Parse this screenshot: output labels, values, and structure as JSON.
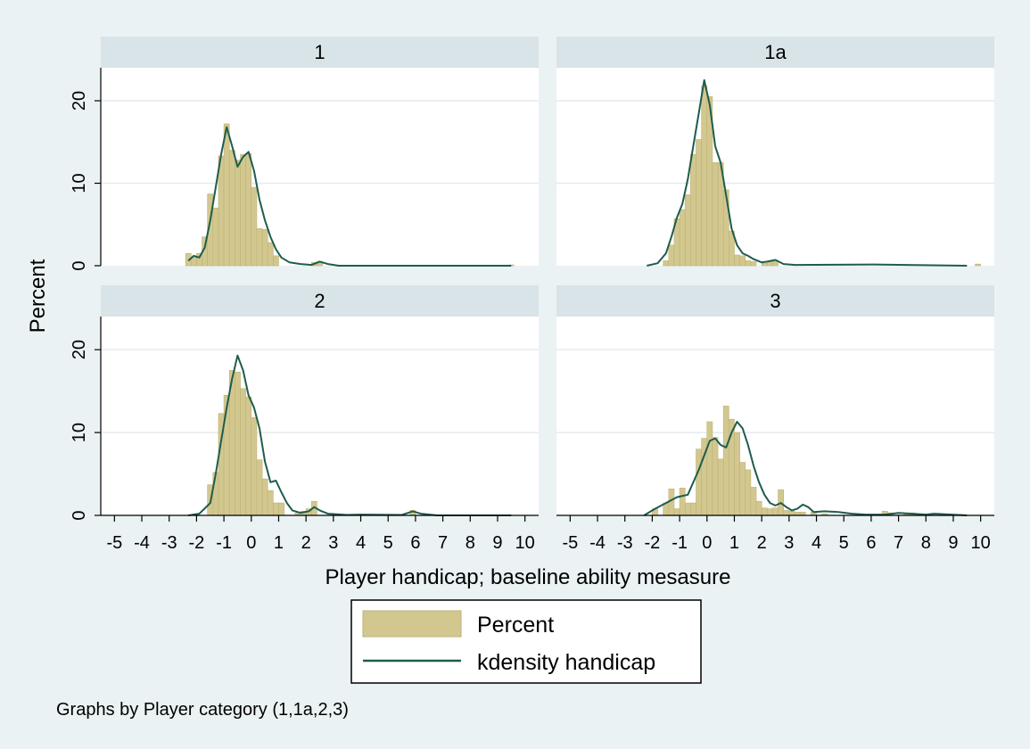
{
  "chart_data": {
    "type": "bar",
    "layout": "2x2 small multiples",
    "note": "Graphs by Player category (1,1a,2,3)",
    "xlabel": "Player handicap; baseline ability mesasure",
    "ylabel": "Percent",
    "xlim": [
      -5.5,
      10.5
    ],
    "ylim": [
      0,
      24
    ],
    "xticks": [
      -5,
      -4,
      -3,
      -2,
      -1,
      0,
      1,
      2,
      3,
      4,
      5,
      6,
      7,
      8,
      9,
      10
    ],
    "yticks": [
      0,
      10,
      20
    ],
    "grid": true,
    "bin_width": 0.2,
    "legend": {
      "position": "bottom",
      "items": [
        "Percent",
        "kdensity handicap"
      ]
    },
    "colors": {
      "bar_fill": "#d2c88f",
      "bar_edge": "#bdb273",
      "density_line": "#1f5c4e",
      "strip_bg": "#d9e4e8",
      "background": "#eaf2f3"
    },
    "panels": [
      {
        "title": "1",
        "bars": [
          [
            -2.3,
            1.5
          ],
          [
            -2.1,
            1.0
          ],
          [
            -1.9,
            1.5
          ],
          [
            -1.7,
            3.5
          ],
          [
            -1.5,
            8.7
          ],
          [
            -1.3,
            7.0
          ],
          [
            -1.1,
            13.3
          ],
          [
            -0.9,
            17.2
          ],
          [
            -0.7,
            14.0
          ],
          [
            -0.5,
            12.8
          ],
          [
            -0.3,
            13.5
          ],
          [
            -0.1,
            13.6
          ],
          [
            0.1,
            9.5
          ],
          [
            0.3,
            4.5
          ],
          [
            0.5,
            4.4
          ],
          [
            0.7,
            2.8
          ],
          [
            0.9,
            1.2
          ],
          [
            2.3,
            0.4
          ],
          [
            2.5,
            0.5
          ],
          [
            9.5,
            0.1
          ]
        ],
        "density": [
          [
            -2.3,
            0.6
          ],
          [
            -2.1,
            1.2
          ],
          [
            -1.9,
            1.0
          ],
          [
            -1.7,
            2.2
          ],
          [
            -1.5,
            5.5
          ],
          [
            -1.3,
            9.5
          ],
          [
            -1.1,
            13.5
          ],
          [
            -0.9,
            16.8
          ],
          [
            -0.7,
            14.5
          ],
          [
            -0.5,
            12.0
          ],
          [
            -0.3,
            13.2
          ],
          [
            -0.1,
            13.8
          ],
          [
            0.1,
            11.5
          ],
          [
            0.3,
            8.0
          ],
          [
            0.5,
            5.5
          ],
          [
            0.7,
            3.5
          ],
          [
            0.9,
            2.0
          ],
          [
            1.1,
            1.0
          ],
          [
            1.4,
            0.4
          ],
          [
            1.8,
            0.2
          ],
          [
            2.2,
            0.1
          ],
          [
            2.5,
            0.5
          ],
          [
            2.8,
            0.2
          ],
          [
            3.2,
            0.0
          ],
          [
            4.0,
            0.0
          ],
          [
            9.5,
            0.0
          ]
        ]
      },
      {
        "title": "1a",
        "bars": [
          [
            -1.5,
            0.6
          ],
          [
            -1.3,
            2.5
          ],
          [
            -1.1,
            5.7
          ],
          [
            -0.9,
            6.8
          ],
          [
            -0.7,
            8.6
          ],
          [
            -0.5,
            13.5
          ],
          [
            -0.3,
            15.3
          ],
          [
            -0.1,
            21.8
          ],
          [
            0.1,
            20.5
          ],
          [
            0.3,
            12.5
          ],
          [
            0.5,
            12.5
          ],
          [
            0.7,
            9.2
          ],
          [
            0.9,
            4.2
          ],
          [
            1.1,
            1.3
          ],
          [
            1.3,
            1.2
          ],
          [
            1.5,
            0.6
          ],
          [
            1.7,
            0.5
          ],
          [
            2.1,
            0.3
          ],
          [
            2.3,
            0.5
          ],
          [
            2.5,
            0.5
          ],
          [
            9.9,
            0.2
          ]
        ],
        "density": [
          [
            -2.2,
            0.0
          ],
          [
            -1.8,
            0.3
          ],
          [
            -1.5,
            1.5
          ],
          [
            -1.3,
            3.5
          ],
          [
            -1.1,
            5.8
          ],
          [
            -0.9,
            7.5
          ],
          [
            -0.7,
            10.5
          ],
          [
            -0.5,
            14.5
          ],
          [
            -0.3,
            18.5
          ],
          [
            -0.1,
            22.5
          ],
          [
            0.1,
            19.5
          ],
          [
            0.3,
            14.5
          ],
          [
            0.5,
            12.5
          ],
          [
            0.7,
            8.5
          ],
          [
            0.9,
            4.5
          ],
          [
            1.1,
            2.5
          ],
          [
            1.3,
            1.5
          ],
          [
            1.5,
            1.2
          ],
          [
            1.7,
            0.8
          ],
          [
            2.0,
            0.4
          ],
          [
            2.2,
            0.5
          ],
          [
            2.5,
            0.7
          ],
          [
            2.8,
            0.2
          ],
          [
            3.2,
            0.1
          ],
          [
            6.1,
            0.15
          ],
          [
            9.5,
            0.0
          ]
        ]
      },
      {
        "title": "2",
        "bars": [
          [
            -1.5,
            3.7
          ],
          [
            -1.3,
            5.2
          ],
          [
            -1.1,
            12.3
          ],
          [
            -0.9,
            14.5
          ],
          [
            -0.7,
            17.5
          ],
          [
            -0.5,
            17.3
          ],
          [
            -0.3,
            15.3
          ],
          [
            -0.1,
            14.3
          ],
          [
            0.1,
            11.8
          ],
          [
            0.3,
            6.7
          ],
          [
            0.5,
            4.4
          ],
          [
            0.7,
            3.0
          ],
          [
            0.9,
            1.5
          ],
          [
            1.1,
            1.5
          ],
          [
            1.7,
            0.3
          ],
          [
            1.9,
            0.5
          ],
          [
            2.1,
            0.8
          ],
          [
            2.3,
            1.7
          ],
          [
            5.9,
            0.6
          ]
        ],
        "density": [
          [
            -2.3,
            0.0
          ],
          [
            -1.9,
            0.2
          ],
          [
            -1.5,
            1.5
          ],
          [
            -1.3,
            5.0
          ],
          [
            -1.1,
            9.0
          ],
          [
            -0.9,
            13.0
          ],
          [
            -0.7,
            16.5
          ],
          [
            -0.5,
            19.3
          ],
          [
            -0.3,
            17.5
          ],
          [
            -0.1,
            14.5
          ],
          [
            0.1,
            13.0
          ],
          [
            0.3,
            10.5
          ],
          [
            0.5,
            6.5
          ],
          [
            0.7,
            4.0
          ],
          [
            0.9,
            4.2
          ],
          [
            1.1,
            2.8
          ],
          [
            1.3,
            1.5
          ],
          [
            1.5,
            0.6
          ],
          [
            1.8,
            0.3
          ],
          [
            2.1,
            0.5
          ],
          [
            2.3,
            1.0
          ],
          [
            2.5,
            0.6
          ],
          [
            2.8,
            0.2
          ],
          [
            3.5,
            0.05
          ],
          [
            4.0,
            0.1
          ],
          [
            5.5,
            0.05
          ],
          [
            5.9,
            0.5
          ],
          [
            6.2,
            0.2
          ],
          [
            6.8,
            0.0
          ],
          [
            9.5,
            0.0
          ]
        ]
      },
      {
        "title": "3",
        "bars": [
          [
            -1.9,
            0.8
          ],
          [
            -1.7,
            0.0
          ],
          [
            -1.5,
            1.5
          ],
          [
            -1.3,
            3.2
          ],
          [
            -1.1,
            0.8
          ],
          [
            -0.9,
            3.3
          ],
          [
            -0.7,
            1.5
          ],
          [
            -0.5,
            1.5
          ],
          [
            -0.3,
            8.0
          ],
          [
            -0.1,
            9.3
          ],
          [
            0.1,
            11.3
          ],
          [
            0.3,
            9.4
          ],
          [
            0.5,
            6.8
          ],
          [
            0.7,
            13.2
          ],
          [
            0.9,
            11.6
          ],
          [
            1.1,
            10.0
          ],
          [
            1.3,
            6.4
          ],
          [
            1.5,
            5.5
          ],
          [
            1.7,
            3.4
          ],
          [
            1.9,
            1.7
          ],
          [
            2.1,
            0.9
          ],
          [
            2.3,
            0.8
          ],
          [
            2.5,
            0.9
          ],
          [
            2.7,
            3.1
          ],
          [
            2.9,
            0.6
          ],
          [
            3.1,
            0.5
          ],
          [
            3.3,
            0.4
          ],
          [
            3.5,
            0.4
          ],
          [
            3.9,
            0.4
          ],
          [
            4.3,
            0.2
          ],
          [
            6.5,
            0.5
          ],
          [
            6.7,
            0.3
          ],
          [
            7.3,
            0.3
          ],
          [
            7.5,
            0.3
          ],
          [
            9.3,
            0.1
          ]
        ],
        "density": [
          [
            -2.3,
            0.0
          ],
          [
            -1.9,
            0.8
          ],
          [
            -1.5,
            1.5
          ],
          [
            -1.1,
            2.2
          ],
          [
            -0.7,
            2.5
          ],
          [
            -0.3,
            5.5
          ],
          [
            0.1,
            9.0
          ],
          [
            0.3,
            9.3
          ],
          [
            0.5,
            8.5
          ],
          [
            0.7,
            8.2
          ],
          [
            0.9,
            10.0
          ],
          [
            1.1,
            11.3
          ],
          [
            1.3,
            10.5
          ],
          [
            1.5,
            8.5
          ],
          [
            1.7,
            6.0
          ],
          [
            1.9,
            4.0
          ],
          [
            2.1,
            2.5
          ],
          [
            2.3,
            1.5
          ],
          [
            2.5,
            1.2
          ],
          [
            2.7,
            1.5
          ],
          [
            2.9,
            1.0
          ],
          [
            3.1,
            0.6
          ],
          [
            3.3,
            0.8
          ],
          [
            3.5,
            1.3
          ],
          [
            3.7,
            1.0
          ],
          [
            3.9,
            0.4
          ],
          [
            4.3,
            0.5
          ],
          [
            4.8,
            0.4
          ],
          [
            5.3,
            0.2
          ],
          [
            5.8,
            0.1
          ],
          [
            6.5,
            0.1
          ],
          [
            7.0,
            0.3
          ],
          [
            7.5,
            0.2
          ],
          [
            8.0,
            0.1
          ],
          [
            8.3,
            0.2
          ],
          [
            9.5,
            0.0
          ]
        ]
      }
    ]
  }
}
